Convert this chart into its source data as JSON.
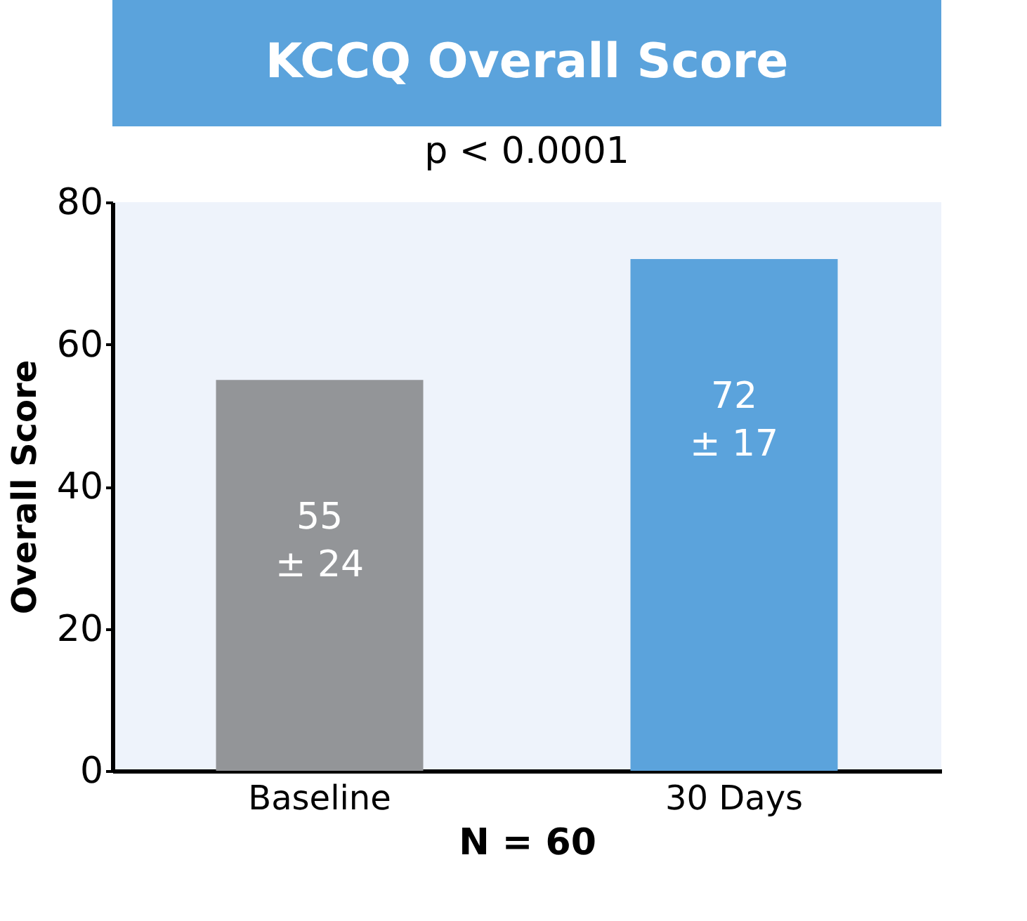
{
  "chart_data": {
    "type": "bar",
    "title": "KCCQ Overall Score",
    "subtitle": "p < 0.0001",
    "ylabel": "Overall Score",
    "xlabel": "N = 60",
    "categories": [
      "Baseline",
      "30 Days"
    ],
    "values": [
      55,
      72
    ],
    "colors": [
      "#939598",
      "#5ba3dc"
    ],
    "value_labels": [
      "55\n± 24",
      "72\n± 17"
    ],
    "ylim": [
      0,
      80
    ],
    "yticks": [
      0,
      20,
      40,
      60,
      80
    ],
    "grid": false
  }
}
